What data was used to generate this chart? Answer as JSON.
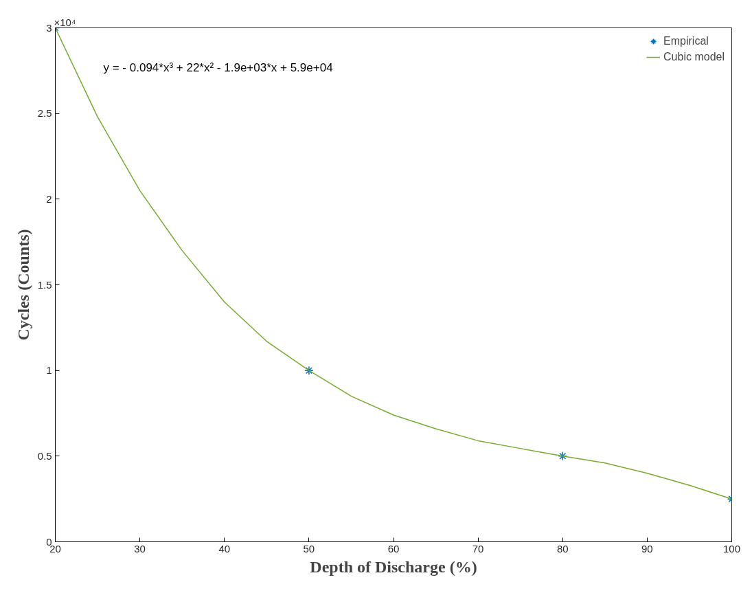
{
  "chart_data": {
    "type": "line",
    "xlabel": "Depth of Discharge (%)",
    "ylabel": "Cycles (Counts)",
    "xlim": [
      20,
      100
    ],
    "xticks": [
      20,
      30,
      40,
      50,
      60,
      70,
      80,
      90,
      100
    ],
    "ylim": [
      0,
      3
    ],
    "yticks": [
      0,
      0.5,
      1,
      1.5,
      2,
      2.5,
      3
    ],
    "annotations": [
      "×10⁴",
      "y = - 0.094*x³ + 22*x² - 1.9e+03*x + 5.9e+04"
    ],
    "grid": false,
    "legend": "top right",
    "series": [
      {
        "name": "Empirical",
        "type": "scatter",
        "marker": "cross",
        "color": "#0072bd",
        "x": [
          20,
          50,
          80,
          100
        ],
        "values": [
          3,
          1,
          0.5,
          0.25
        ]
      },
      {
        "name": "Cubic model",
        "marker": "none",
        "line_style": "solid",
        "color": "#77ac30",
        "x": [
          20,
          25,
          30,
          35,
          40,
          45,
          50,
          55,
          60,
          65,
          70,
          75,
          80,
          85,
          90,
          95,
          100
        ],
        "values": [
          3,
          2.48,
          2.05,
          1.7,
          1.4,
          1.17,
          1,
          0.85,
          0.74,
          0.66,
          0.59,
          0.545,
          0.5,
          0.46,
          0.4,
          0.33,
          0.25
        ]
      }
    ]
  }
}
